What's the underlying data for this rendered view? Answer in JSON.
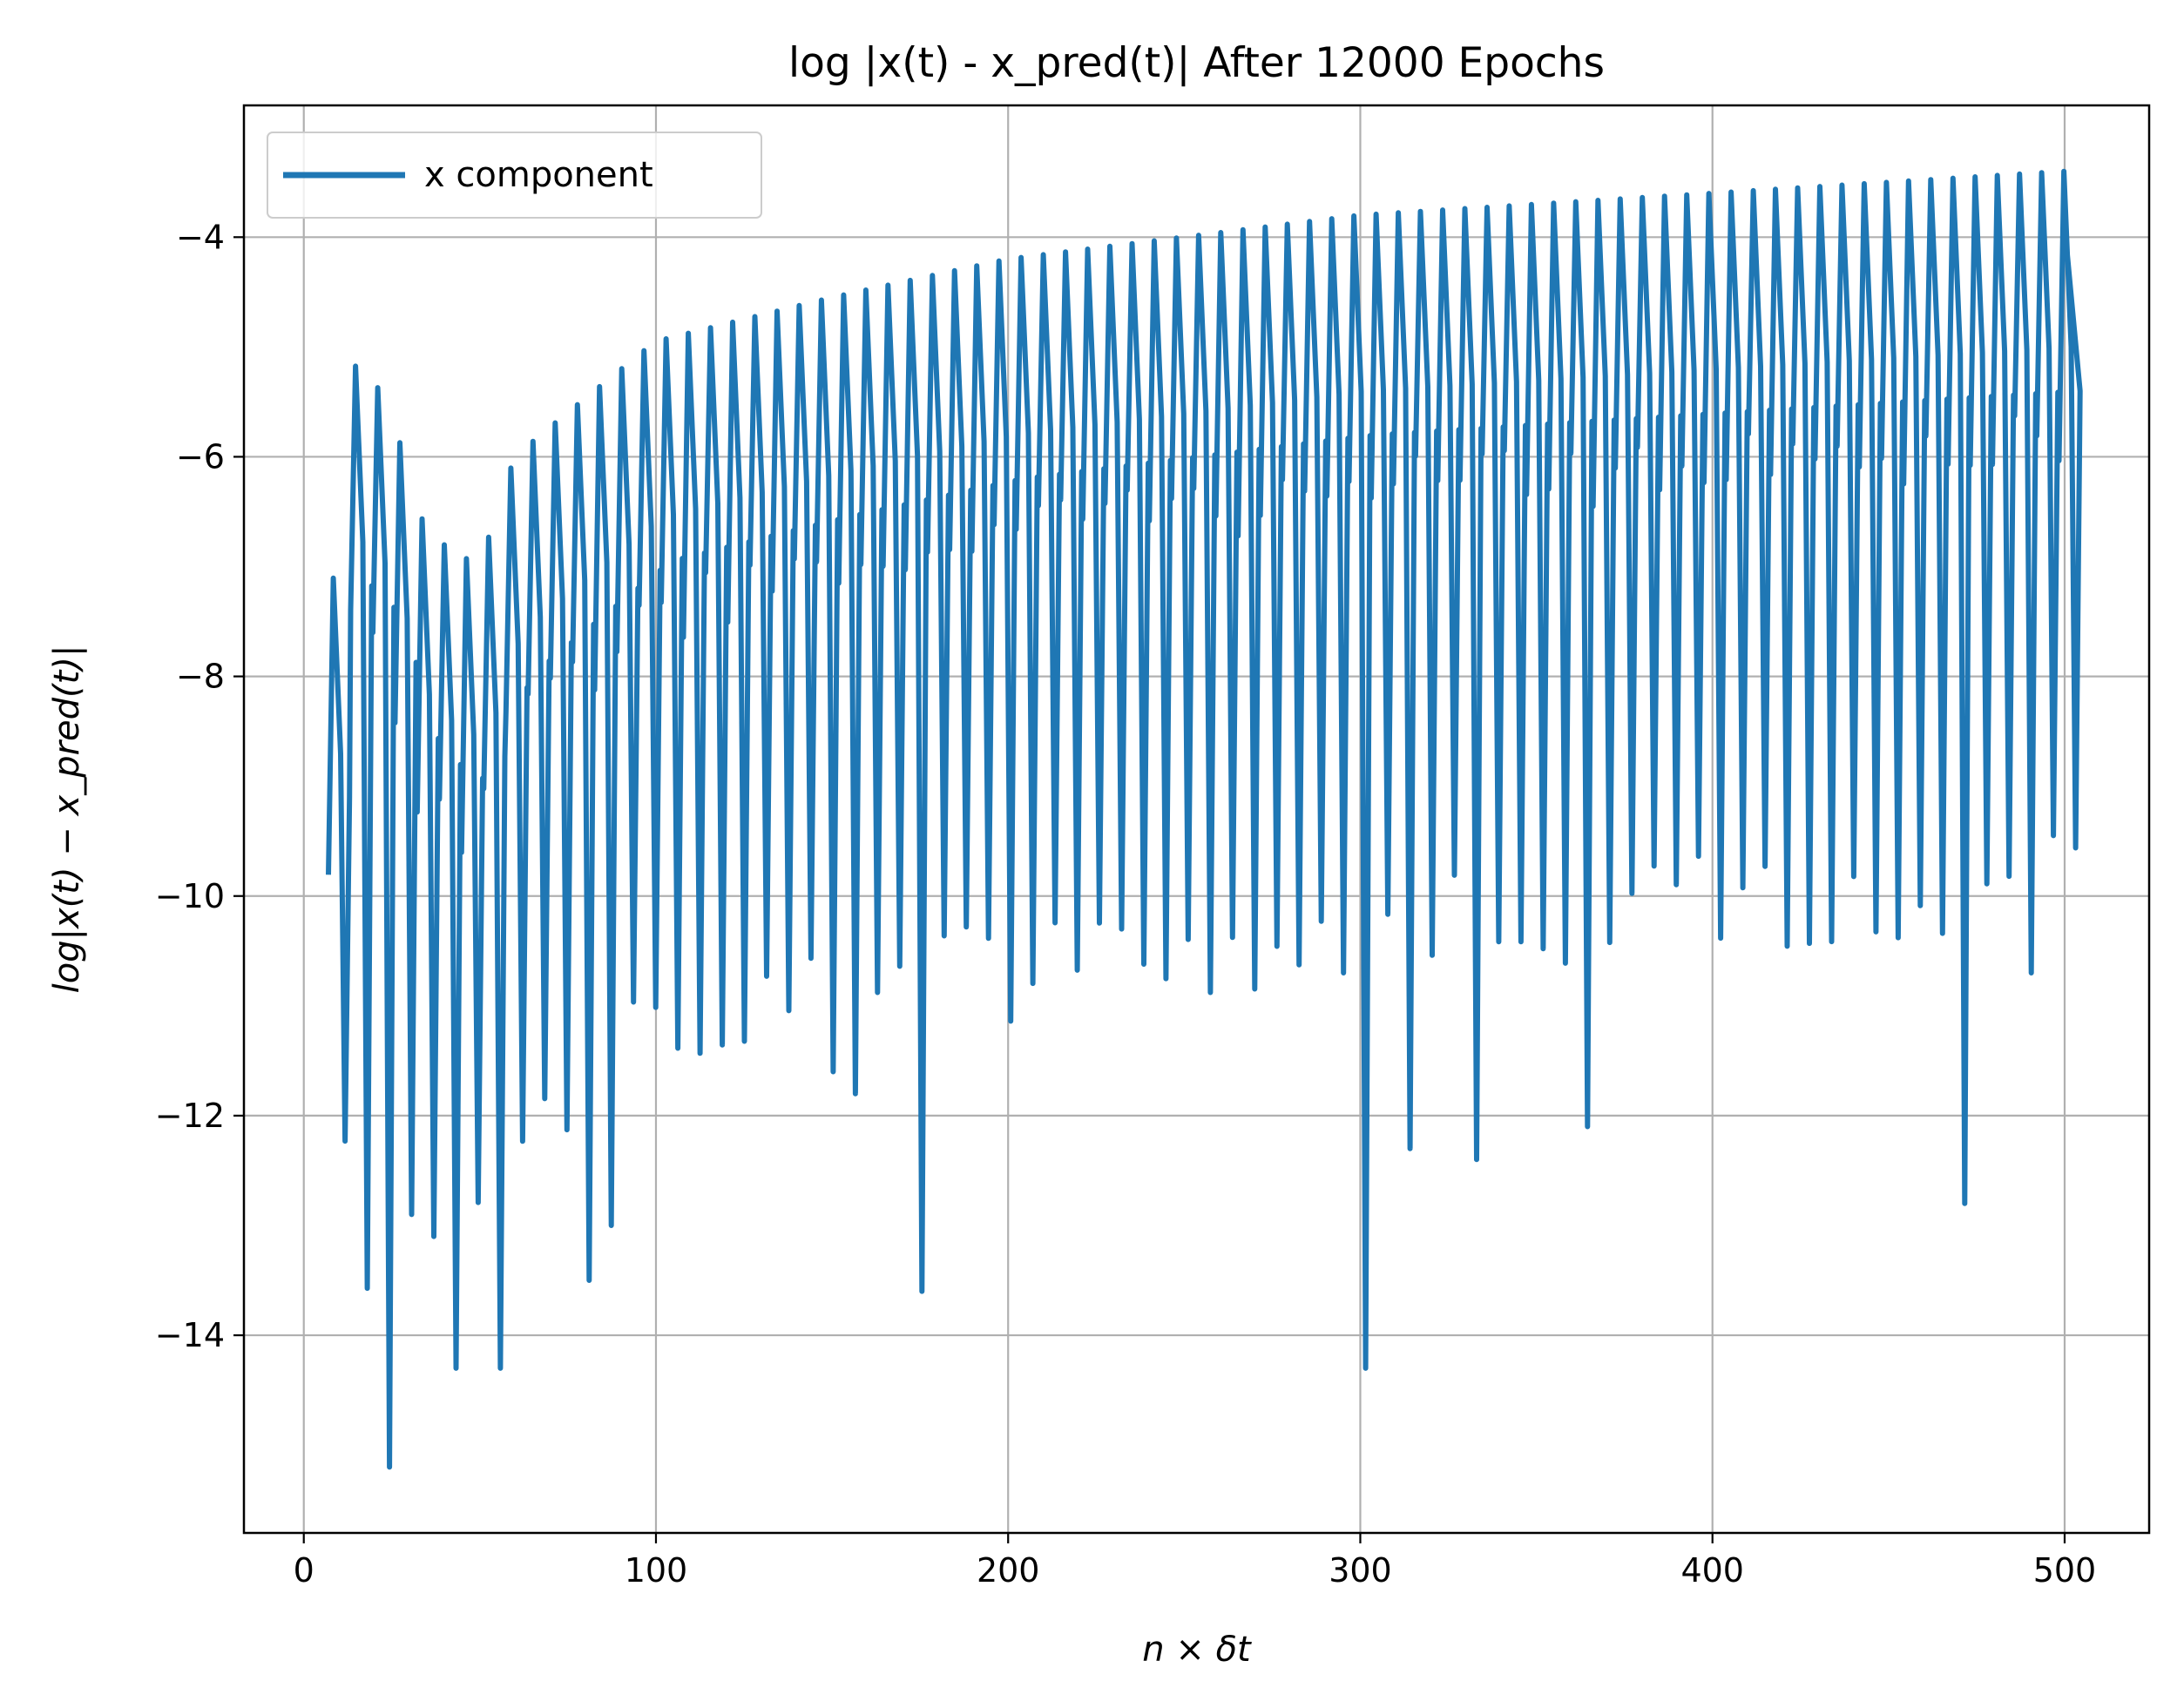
{
  "chart_data": {
    "type": "line",
    "title": "log |x(t) - x_pred(t)| After 12000 Epochs",
    "xlabel": "n × δt",
    "ylabel": "log|x(t) − x_pred(t)|",
    "xlim": [
      -17,
      524
    ],
    "ylim": [
      -15.8,
      -2.8
    ],
    "xticks": [
      0,
      100,
      200,
      300,
      400,
      500
    ],
    "yticks": [
      -4,
      -6,
      -8,
      -10,
      -12,
      -14
    ],
    "xtick_labels": [
      "0",
      "100",
      "200",
      "300",
      "400",
      "500"
    ],
    "ytick_labels": [
      "−4",
      "−6",
      "−8",
      "−10",
      "−12",
      "−14"
    ],
    "grid": true,
    "legend": {
      "position": "top-left"
    },
    "series": [
      {
        "name": "x component",
        "color": "#1f77b4",
        "x_range": [
          7,
          500
        ],
        "oscillation_period": 6.3,
        "upper_envelope": [
          [
            7,
            -7.2
          ],
          [
            12,
            -6.9
          ],
          [
            15,
            -5.1
          ],
          [
            20,
            -5.3
          ],
          [
            25,
            -5.6
          ],
          [
            35,
            -6.7
          ],
          [
            50,
            -7.0
          ],
          [
            60,
            -6.0
          ],
          [
            75,
            -5.6
          ],
          [
            100,
            -4.95
          ],
          [
            150,
            -4.55
          ],
          [
            200,
            -4.2
          ],
          [
            250,
            -4.0
          ],
          [
            300,
            -3.8
          ],
          [
            350,
            -3.7
          ],
          [
            400,
            -3.6
          ],
          [
            450,
            -3.5
          ],
          [
            500,
            -3.4
          ]
        ],
        "lower_envelope": [
          [
            7,
            -9.3
          ],
          [
            12,
            -12.3
          ],
          [
            25,
            -13.0
          ],
          [
            40,
            -13.0
          ],
          [
            60,
            -12.0
          ],
          [
            80,
            -11.0
          ],
          [
            100,
            -10.5
          ],
          [
            150,
            -10.3
          ],
          [
            200,
            -10.2
          ],
          [
            250,
            -10.0
          ],
          [
            300,
            -9.9
          ],
          [
            350,
            -9.7
          ],
          [
            400,
            -9.6
          ],
          [
            450,
            -9.5
          ],
          [
            500,
            -9.3
          ]
        ],
        "notable_minima": [
          [
            25,
            -15.2
          ],
          [
            30,
            -12.9
          ],
          [
            36,
            -13.1
          ],
          [
            41,
            -14.1
          ],
          [
            46,
            -14.3
          ],
          [
            53,
            -14.3
          ],
          [
            78,
            -13.5
          ],
          [
            85,
            -13.0
          ],
          [
            148,
            -11.6
          ],
          [
            154,
            -11.8
          ],
          [
            173,
            -13.6
          ],
          [
            299,
            -14.3
          ],
          [
            315,
            -12.3
          ],
          [
            330,
            -12.4
          ],
          [
            362,
            -12.1
          ],
          [
            469,
            -12.8
          ],
          [
            491,
            -10.7
          ]
        ]
      }
    ]
  }
}
